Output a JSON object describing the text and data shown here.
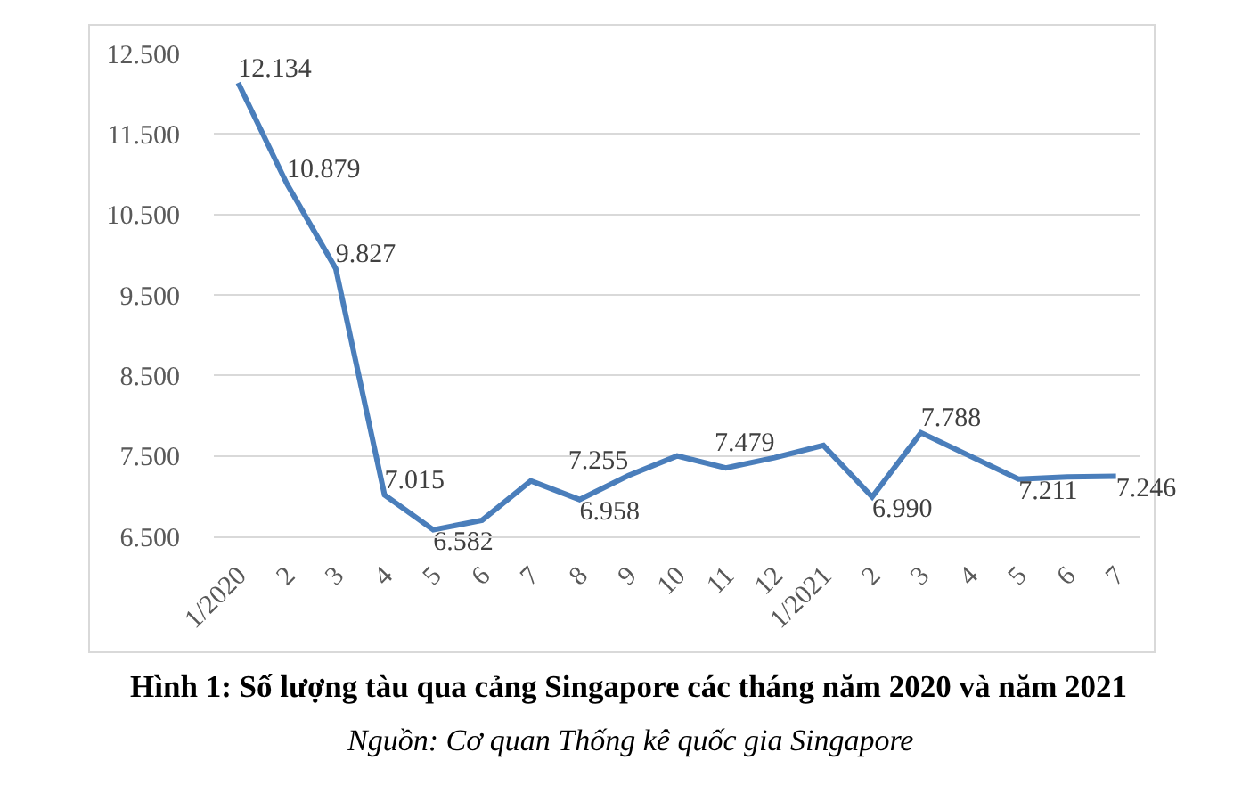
{
  "chart_data": {
    "type": "line",
    "title": "Hình 1: Số lượng tàu qua cảng Singapore các tháng năm 2020 và năm 2021",
    "annotations": [
      "Nguồn: Cơ quan Thống kê quốc gia Singapore"
    ],
    "categories": [
      "1/2020",
      "2",
      "3",
      "4",
      "5",
      "6",
      "7",
      "8",
      "9",
      "10",
      "11",
      "12",
      "1/2021",
      "2",
      "3",
      "4",
      "5",
      "6",
      "7"
    ],
    "series": [
      {
        "color": "#4a7ebb",
        "values": [
          12134,
          10879,
          9827,
          7015,
          6582,
          6700,
          7190,
          6958,
          7255,
          7500,
          7350,
          7479,
          7630,
          6990,
          7788,
          7500,
          7211,
          7240,
          7246
        ],
        "value_labels": [
          "12.134",
          "10.879",
          "9.827",
          "7.015",
          "6.582",
          null,
          null,
          "6.958",
          "7.255",
          null,
          null,
          "7.479",
          null,
          "6.990",
          "7.788",
          null,
          "7.211",
          null,
          "7.246"
        ]
      }
    ],
    "ylim": [
      6500,
      12500
    ],
    "yticks": [
      {
        "value": 6500,
        "label": "6.500"
      },
      {
        "value": 7500,
        "label": "7.500"
      },
      {
        "value": 8500,
        "label": "8.500"
      },
      {
        "value": 9500,
        "label": "9.500"
      },
      {
        "value": 10500,
        "label": "10.500"
      },
      {
        "value": 11500,
        "label": "11.500"
      },
      {
        "value": 12500,
        "label": "12.500"
      }
    ],
    "grid": "y",
    "marker": "none",
    "line_style": "solid"
  }
}
